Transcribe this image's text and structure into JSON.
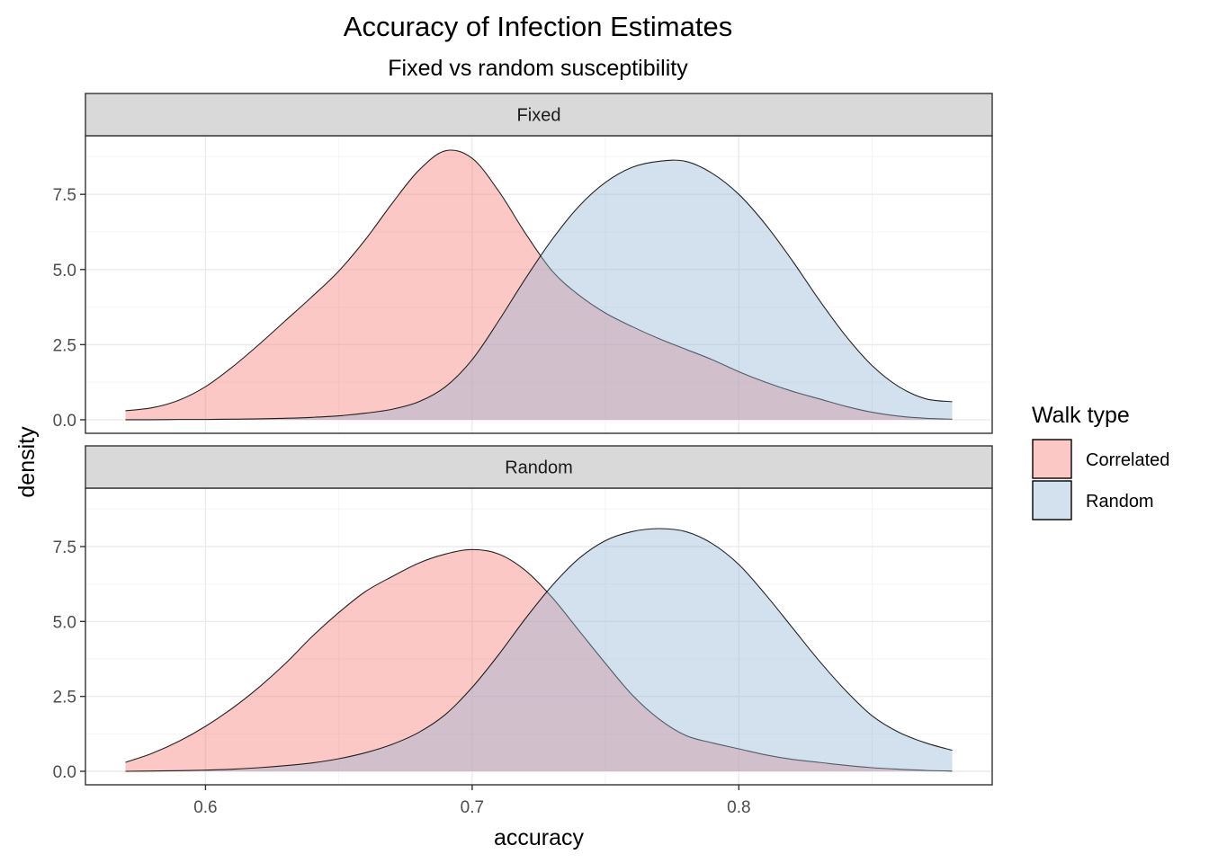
{
  "chart_data": {
    "type": "area",
    "title": "Accuracy of Infection Estimates",
    "subtitle": "Fixed vs random susceptibility",
    "xlabel": "accuracy",
    "ylabel": "density",
    "xlim": [
      0.555,
      0.895
    ],
    "ylim": [
      -0.45,
      9.45
    ],
    "x_ticks": [
      0.6,
      0.7,
      0.8
    ],
    "x_tick_labels": [
      "0.6",
      "0.7",
      "0.8"
    ],
    "y_ticks": [
      0,
      2.5,
      5,
      7.5
    ],
    "y_tick_labels": [
      "0.0",
      "2.5",
      "5.0",
      "7.5"
    ],
    "grid": true,
    "legend": {
      "title": "Walk type",
      "position": "right",
      "entries": [
        {
          "name": "Correlated",
          "color": "#F8766D"
        },
        {
          "name": "Random",
          "color": "#91B4D6"
        }
      ]
    },
    "fill_opacity": 0.4,
    "x": [
      0.57,
      0.58,
      0.59,
      0.6,
      0.61,
      0.62,
      0.63,
      0.64,
      0.65,
      0.66,
      0.67,
      0.68,
      0.69,
      0.7,
      0.71,
      0.72,
      0.73,
      0.74,
      0.75,
      0.76,
      0.77,
      0.78,
      0.79,
      0.8,
      0.81,
      0.82,
      0.83,
      0.84,
      0.85,
      0.86,
      0.87,
      0.88
    ],
    "panels": [
      {
        "strip": "Fixed",
        "series": [
          {
            "name": "Correlated",
            "values": [
              0.3,
              0.4,
              0.65,
              1.1,
              1.75,
              2.5,
              3.3,
              4.1,
              4.95,
              6.0,
              7.2,
              8.3,
              8.95,
              8.7,
              7.6,
              6.2,
              4.95,
              4.15,
              3.55,
              3.1,
              2.7,
              2.35,
              2.0,
              1.6,
              1.25,
              0.95,
              0.7,
              0.45,
              0.25,
              0.12,
              0.05,
              0.02
            ]
          },
          {
            "name": "Random",
            "values": [
              0.0,
              0.0,
              0.01,
              0.01,
              0.02,
              0.03,
              0.05,
              0.08,
              0.13,
              0.22,
              0.35,
              0.6,
              1.1,
              2.0,
              3.3,
              4.7,
              6.0,
              7.1,
              7.9,
              8.4,
              8.6,
              8.6,
              8.2,
              7.5,
              6.5,
              5.3,
              4.0,
              2.8,
              1.8,
              1.1,
              0.7,
              0.6
            ]
          }
        ]
      },
      {
        "strip": "Random",
        "series": [
          {
            "name": "Correlated",
            "values": [
              0.3,
              0.6,
              1.0,
              1.5,
              2.1,
              2.8,
              3.6,
              4.5,
              5.3,
              6.0,
              6.5,
              6.95,
              7.25,
              7.4,
              7.25,
              6.7,
              5.8,
              4.7,
              3.6,
              2.55,
              1.75,
              1.2,
              0.95,
              0.75,
              0.55,
              0.4,
              0.3,
              0.2,
              0.12,
              0.07,
              0.03,
              0.01
            ]
          },
          {
            "name": "Random",
            "values": [
              0.0,
              0.01,
              0.02,
              0.04,
              0.07,
              0.12,
              0.19,
              0.28,
              0.42,
              0.62,
              0.9,
              1.3,
              1.9,
              2.8,
              3.9,
              5.1,
              6.2,
              7.1,
              7.7,
              8.0,
              8.1,
              8.0,
              7.6,
              6.9,
              5.9,
              4.8,
              3.7,
              2.7,
              1.85,
              1.3,
              0.95,
              0.7
            ]
          }
        ]
      }
    ]
  }
}
